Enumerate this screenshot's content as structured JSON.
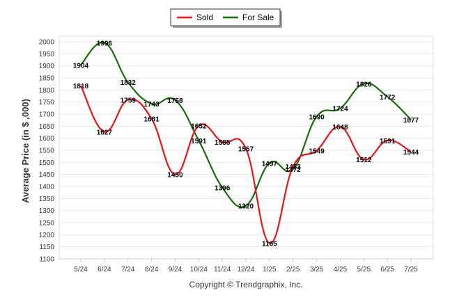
{
  "chart_data": {
    "type": "line",
    "title": "",
    "xlabel": "",
    "ylabel": "Average Price (in $ ,000)",
    "categories": [
      "5/24",
      "6/24",
      "7/24",
      "8/24",
      "9/24",
      "10/24",
      "11/24",
      "12/24",
      "1/25",
      "2/25",
      "3/25",
      "4/25",
      "5/25",
      "6/25",
      "7/25"
    ],
    "series": [
      {
        "name": "Sold",
        "color": "#e8131b",
        "values": [
          1818,
          1627,
          1759,
          1681,
          1450,
          1652,
          1585,
          1557,
          1165,
          1483,
          1549,
          1648,
          1512,
          1591,
          1544
        ]
      },
      {
        "name": "For Sale",
        "color": "#1a6b0b",
        "values": [
          1904,
          1996,
          1832,
          1743,
          1758,
          1591,
          1396,
          1320,
          1497,
          1472,
          1690,
          1724,
          1826,
          1772,
          1677
        ]
      }
    ],
    "ylim": [
      1100,
      2000
    ],
    "yticks": [
      1100,
      1150,
      1200,
      1250,
      1300,
      1350,
      1400,
      1450,
      1500,
      1550,
      1600,
      1650,
      1700,
      1750,
      1800,
      1850,
      1900,
      1950,
      2000
    ],
    "grid": true,
    "legend_position": "top-center",
    "credit": "Copyright © Trendgraphix, Inc."
  }
}
